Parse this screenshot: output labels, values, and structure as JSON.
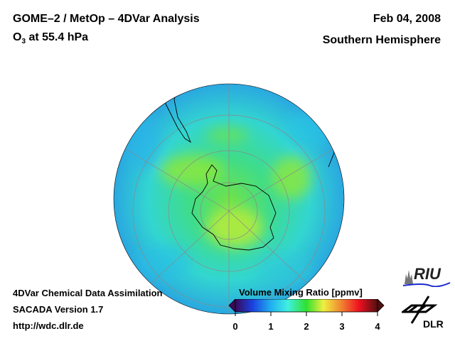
{
  "header": {
    "title": "GOME–2 / MetOp – 4DVar Analysis",
    "species": "O",
    "species_sub": "3",
    "level": " at 55.4 hPa",
    "date": "Feb 04, 2008",
    "region": "Southern Hemisphere"
  },
  "footer": {
    "line1": "4DVar Chemical Data Assimilation",
    "line2": "SACADA Version 1.7",
    "url": "http://wdc.dlr.de"
  },
  "colorbar": {
    "title": "Volume Mixing Ratio [ppmv]",
    "ticks": [
      "0",
      "1",
      "2",
      "3",
      "4"
    ],
    "range": [
      0,
      4
    ]
  },
  "logos": {
    "riu": "RIU",
    "dlr": "DLR"
  }
}
